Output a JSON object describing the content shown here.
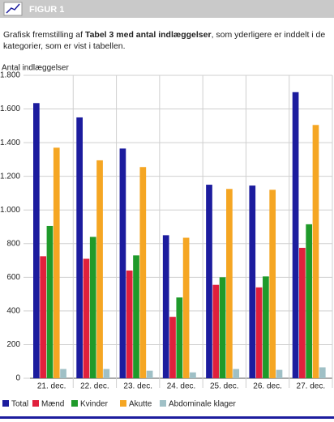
{
  "header": {
    "title": "FIGUR 1"
  },
  "caption": {
    "before": "Grafisk fremstilling af ",
    "bold": "Tabel 3 med antal indlæggelser",
    "after": ", som yderligere er inddelt i de kategorier, som er vist i tabellen."
  },
  "chart_data": {
    "type": "bar",
    "ylabel": "Antal indlæggelser",
    "categories": [
      "21. dec.",
      "22. dec.",
      "23. dec.",
      "24. dec.",
      "25. dec.",
      "26. dec.",
      "27. dec."
    ],
    "series": [
      {
        "name": "Total",
        "color": "#1c1c9e",
        "values": [
          1635,
          1550,
          1365,
          850,
          1150,
          1145,
          1700
        ]
      },
      {
        "name": "Mænd",
        "color": "#e0203c",
        "values": [
          725,
          710,
          640,
          365,
          555,
          540,
          775
        ]
      },
      {
        "name": "Kvinder",
        "color": "#1f9a2a",
        "values": [
          905,
          840,
          730,
          480,
          600,
          605,
          915
        ]
      },
      {
        "name": "Akutte",
        "color": "#f5a623",
        "values": [
          1370,
          1295,
          1255,
          835,
          1125,
          1120,
          1505
        ]
      },
      {
        "name": "Abdominale klager",
        "color": "#9fc0c6",
        "values": [
          55,
          55,
          45,
          35,
          55,
          50,
          65
        ]
      }
    ],
    "ylim": [
      0,
      1800
    ],
    "yticks": [
      0,
      200,
      400,
      600,
      800,
      {
        "value": 1000,
        "label": "1.000"
      },
      {
        "value": 1200,
        "label": "1.200"
      },
      {
        "value": 1400,
        "label": "1.400"
      },
      {
        "value": 1600,
        "label": "1.600"
      },
      {
        "value": 1800,
        "label": "1.800"
      }
    ],
    "grid": true
  }
}
